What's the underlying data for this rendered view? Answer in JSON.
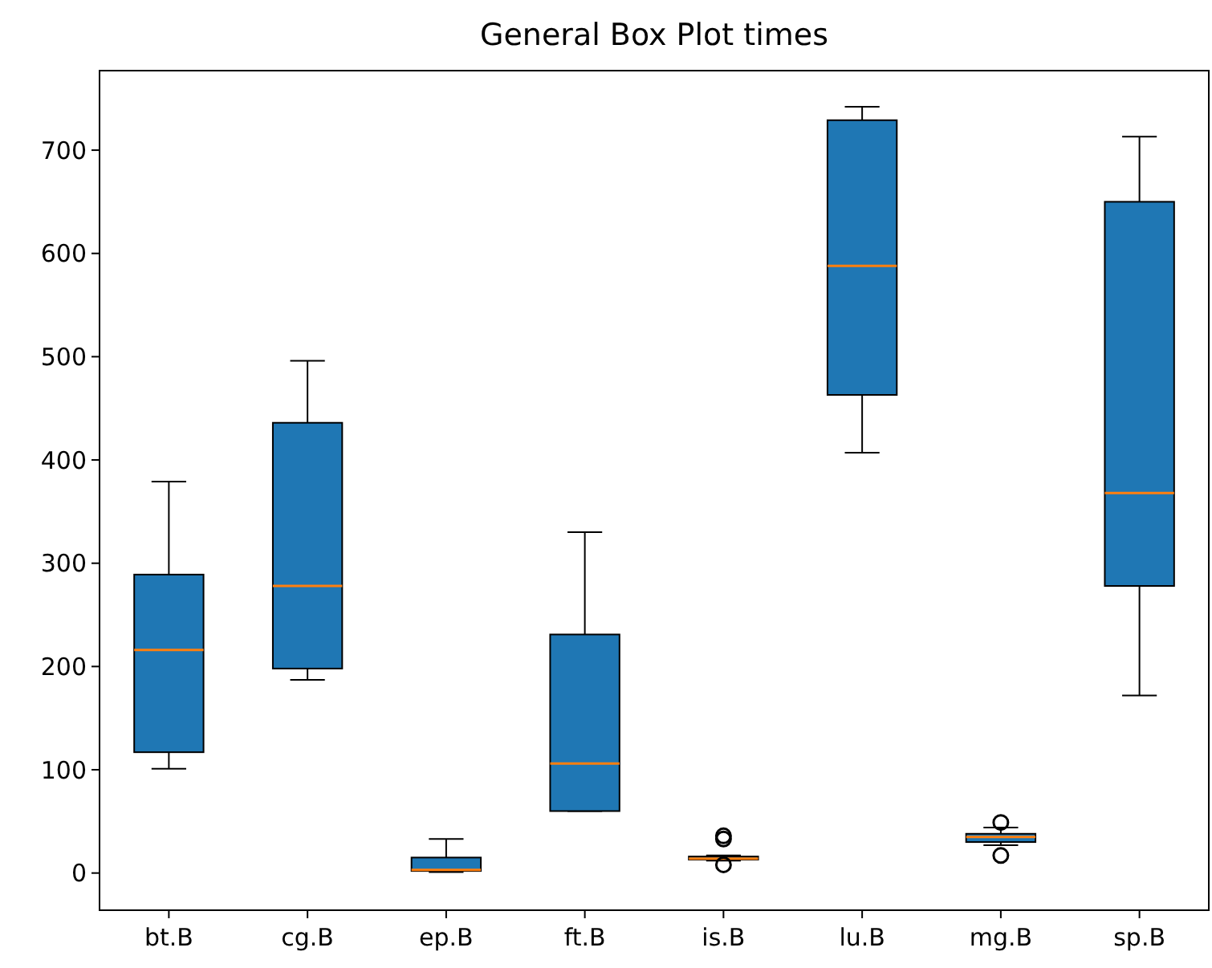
{
  "chart_data": {
    "type": "box",
    "title": "General Box Plot times",
    "categories": [
      "bt.B",
      "cg.B",
      "ep.B",
      "ft.B",
      "is.B",
      "lu.B",
      "mg.B",
      "sp.B"
    ],
    "color": "#1f77b4",
    "ylim": [
      -36,
      777
    ],
    "yticks": [
      0,
      100,
      200,
      300,
      400,
      500,
      600,
      700
    ],
    "grid": false,
    "boxes": [
      {
        "low": 101,
        "q1": 117,
        "median": 216,
        "q3": 289,
        "high": 379
      },
      {
        "low": 187,
        "q1": 198,
        "median": 278,
        "q3": 436,
        "high": 496
      },
      {
        "low": 1,
        "q1": 2,
        "median": 3,
        "q3": 15,
        "high": 33
      },
      {
        "low": 60,
        "q1": 60,
        "median": 106,
        "q3": 231,
        "high": 330
      },
      {
        "low": 12,
        "q1": 13,
        "median": 14,
        "q3": 16,
        "high": 17,
        "outliers": [
          36,
          33,
          8
        ]
      },
      {
        "low": 407,
        "q1": 463,
        "median": 588,
        "q3": 729,
        "high": 742
      },
      {
        "low": 27,
        "q1": 30,
        "median": 35,
        "q3": 38,
        "high": 44,
        "outliers": [
          49,
          17
        ]
      },
      {
        "low": 172,
        "q1": 278,
        "median": 368,
        "q3": 650,
        "high": 713
      }
    ]
  }
}
